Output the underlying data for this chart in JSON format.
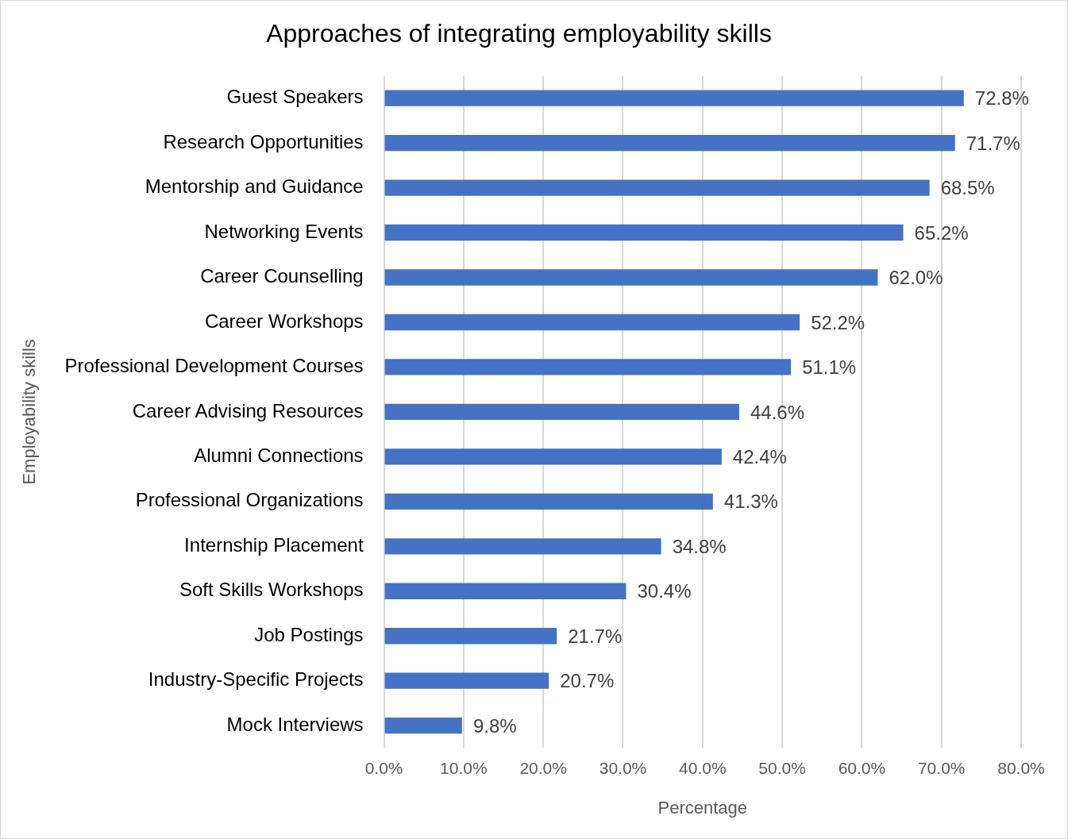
{
  "chart_data": {
    "type": "bar",
    "orientation": "horizontal",
    "title": "Approaches of integrating employability skills",
    "xlabel": "Percentage",
    "ylabel": "Employability skills",
    "categories": [
      "Guest Speakers",
      "Research Opportunities",
      "Mentorship and Guidance",
      "Networking Events",
      "Career Counselling",
      "Career Workshops",
      "Professional Development Courses",
      "Career Advising Resources",
      "Alumni Connections",
      "Professional Organizations",
      "Internship Placement",
      "Soft Skills Workshops",
      "Job Postings",
      "Industry-Specific Projects",
      "Mock Interviews"
    ],
    "values": [
      72.8,
      71.7,
      68.5,
      65.2,
      62.0,
      52.2,
      51.1,
      44.6,
      42.4,
      41.3,
      34.8,
      30.4,
      21.7,
      20.7,
      9.8
    ],
    "value_labels": [
      "72.8%",
      "71.7%",
      "68.5%",
      "65.2%",
      "62.0%",
      "52.2%",
      "51.1%",
      "44.6%",
      "42.4%",
      "41.3%",
      "34.8%",
      "30.4%",
      "21.7%",
      "20.7%",
      "9.8%"
    ],
    "color": "#4472c4",
    "xlim": [
      0,
      80
    ],
    "xticks": [
      {
        "value": 0,
        "label": "0.0%"
      },
      {
        "value": 10,
        "label": "10.0%"
      },
      {
        "value": 20,
        "label": "20.0%"
      },
      {
        "value": 30,
        "label": "30.0%"
      },
      {
        "value": 40,
        "label": "40.0%"
      },
      {
        "value": 50,
        "label": "50.0%"
      },
      {
        "value": 60,
        "label": "60.0%"
      },
      {
        "value": 70,
        "label": "70.0%"
      },
      {
        "value": 80,
        "label": "80.0%"
      }
    ],
    "grid": "x"
  }
}
